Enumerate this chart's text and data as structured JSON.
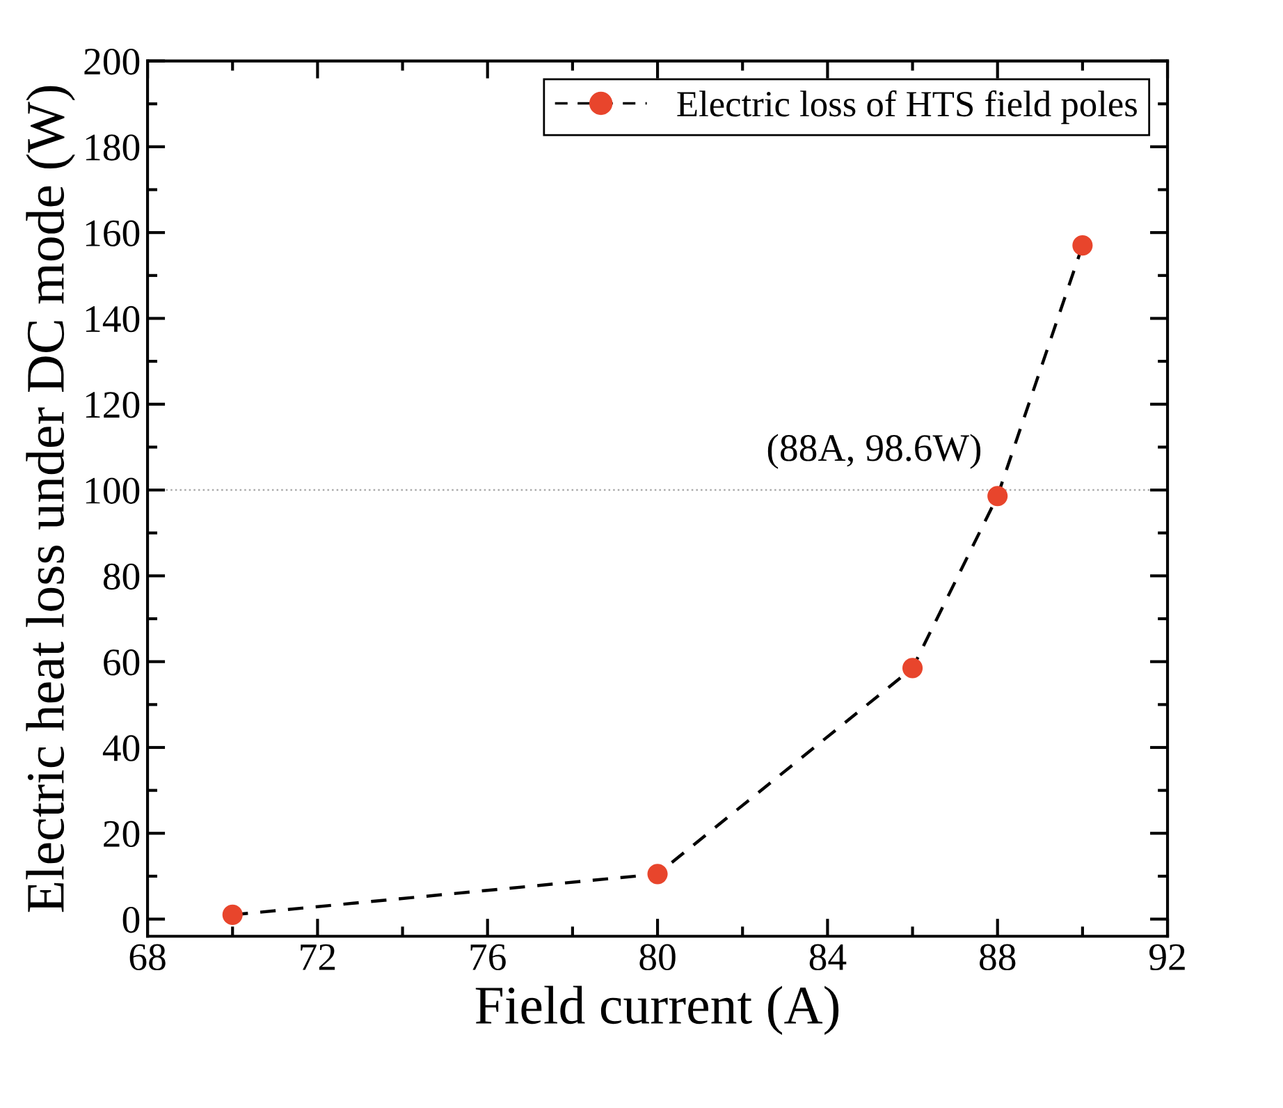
{
  "chart_data": {
    "type": "line",
    "xlabel": "Field current (A)",
    "ylabel": "Electric heat loss under DC mode (W)",
    "x": [
      70,
      80,
      86,
      88,
      90
    ],
    "series": [
      {
        "name": "Electric loss of HTS field poles",
        "color": "#e8452c",
        "values": [
          1,
          10.5,
          58.5,
          98.6,
          157
        ]
      }
    ],
    "xlim": [
      68,
      92
    ],
    "xticks": [
      68,
      72,
      76,
      80,
      84,
      88,
      92
    ],
    "ylim": [
      -4,
      200
    ],
    "yticks": [
      0,
      20,
      40,
      60,
      80,
      100,
      120,
      140,
      160,
      180,
      200
    ],
    "ref_lines": [
      {
        "axis": "y",
        "value": 100,
        "color": "#aaaaaa",
        "line_style": "dotted"
      }
    ],
    "annotations": [
      {
        "text": "(88A, 98.6W)",
        "x": 88,
        "y": 98.6
      }
    ],
    "marker": "circle",
    "line_style": "dashed",
    "legend": "top right",
    "grid": false
  }
}
